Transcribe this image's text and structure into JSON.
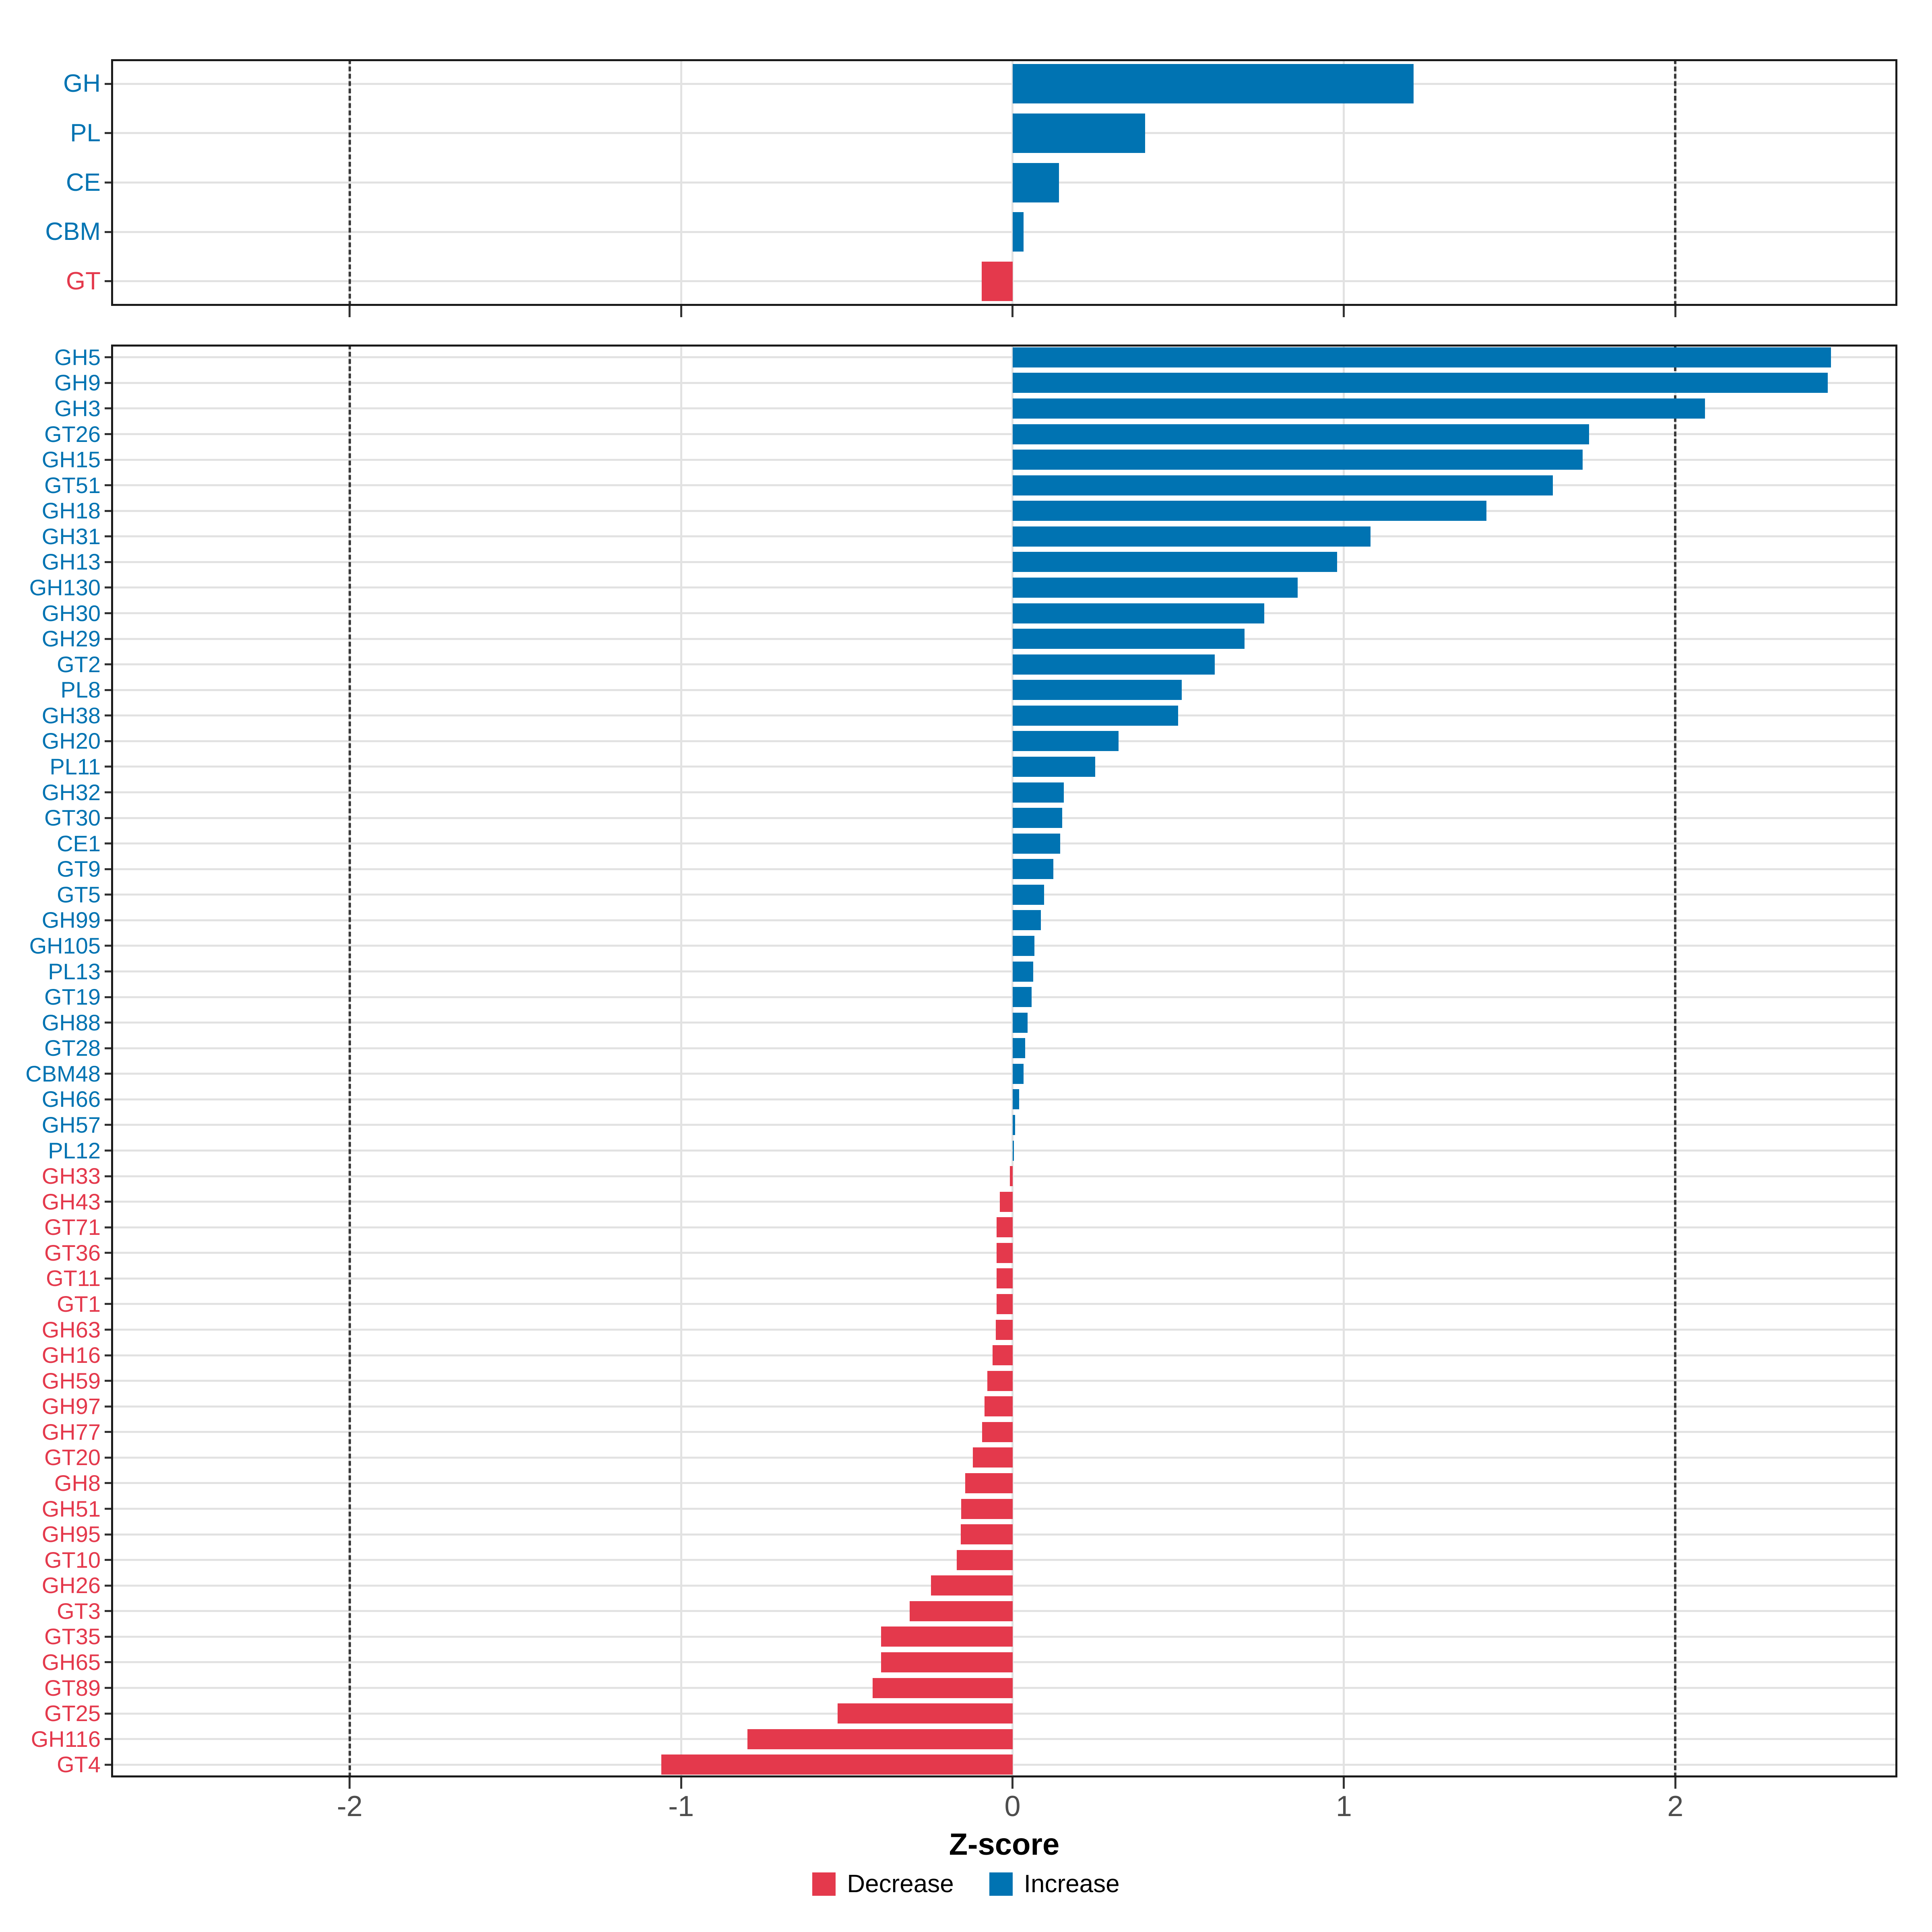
{
  "chart_data": [
    {
      "type": "bar",
      "orientation": "horizontal",
      "panel": "top",
      "title": "",
      "categories": [
        "GH",
        "PL",
        "CE",
        "CBM",
        "GT"
      ],
      "values": [
        1.21,
        0.4,
        0.14,
        0.033,
        -0.093
      ],
      "xlim": [
        -2.72,
        2.67
      ],
      "grid": true,
      "color_rule": "negative=decrease, positive=increase"
    },
    {
      "type": "bar",
      "orientation": "horizontal",
      "panel": "bottom",
      "title": "",
      "categories": [
        "GH5",
        "GH9",
        "GH3",
        "GT26",
        "GH15",
        "GT51",
        "GH18",
        "GH31",
        "GH13",
        "GH130",
        "GH30",
        "GH29",
        "GT2",
        "PL8",
        "GH38",
        "GH20",
        "PL11",
        "GH32",
        "GT30",
        "CE1",
        "GT9",
        "GT5",
        "GH99",
        "GH105",
        "PL13",
        "GT19",
        "GH88",
        "GT28",
        "CBM48",
        "GH66",
        "GH57",
        "PL12",
        "GH33",
        "GH43",
        "GT71",
        "GT36",
        "GT11",
        "GT1",
        "GH63",
        "GH16",
        "GH59",
        "GH97",
        "GH77",
        "GT20",
        "GH8",
        "GH51",
        "GH95",
        "GT10",
        "GH26",
        "GT3",
        "GT35",
        "GH65",
        "GT89",
        "GT25",
        "GH116",
        "GT4"
      ],
      "values": [
        2.47,
        2.46,
        2.09,
        1.74,
        1.72,
        1.63,
        1.43,
        1.08,
        0.98,
        0.86,
        0.76,
        0.7,
        0.61,
        0.51,
        0.5,
        0.32,
        0.25,
        0.155,
        0.15,
        0.144,
        0.123,
        0.095,
        0.085,
        0.066,
        0.062,
        0.058,
        0.046,
        0.038,
        0.033,
        0.02,
        0.008,
        0.004,
        -0.008,
        -0.038,
        -0.048,
        -0.048,
        -0.048,
        -0.048,
        -0.05,
        -0.06,
        -0.076,
        -0.084,
        -0.092,
        -0.12,
        -0.143,
        -0.155,
        -0.156,
        -0.168,
        -0.246,
        -0.31,
        -0.397,
        -0.397,
        -0.422,
        -0.528,
        -0.8,
        -1.06
      ],
      "xlim": [
        -2.72,
        2.67
      ],
      "grid": true,
      "color_rule": "negative=decrease, positive=increase"
    }
  ],
  "axis": {
    "xlabel": "Z-score",
    "ticks": [
      -2,
      -1,
      0,
      1,
      2
    ],
    "tick_labels": [
      "-2",
      "-1",
      "0",
      "1",
      "2"
    ],
    "dashed_guides": [
      -2,
      2
    ]
  },
  "legend": {
    "position": "bottom-center",
    "items": [
      {
        "label": "Decrease",
        "color": "#E4394C"
      },
      {
        "label": "Increase",
        "color": "#0073B2"
      }
    ]
  },
  "colors": {
    "increase": "#0073B2",
    "decrease": "#E4394C",
    "gridline": "#E2E2E2",
    "panel_border": "#1A1A1A",
    "tick": "#333333",
    "tick_label": "#4D4D4D",
    "dashed_guide": "#3A3A3A",
    "background": "#FFFFFF"
  }
}
